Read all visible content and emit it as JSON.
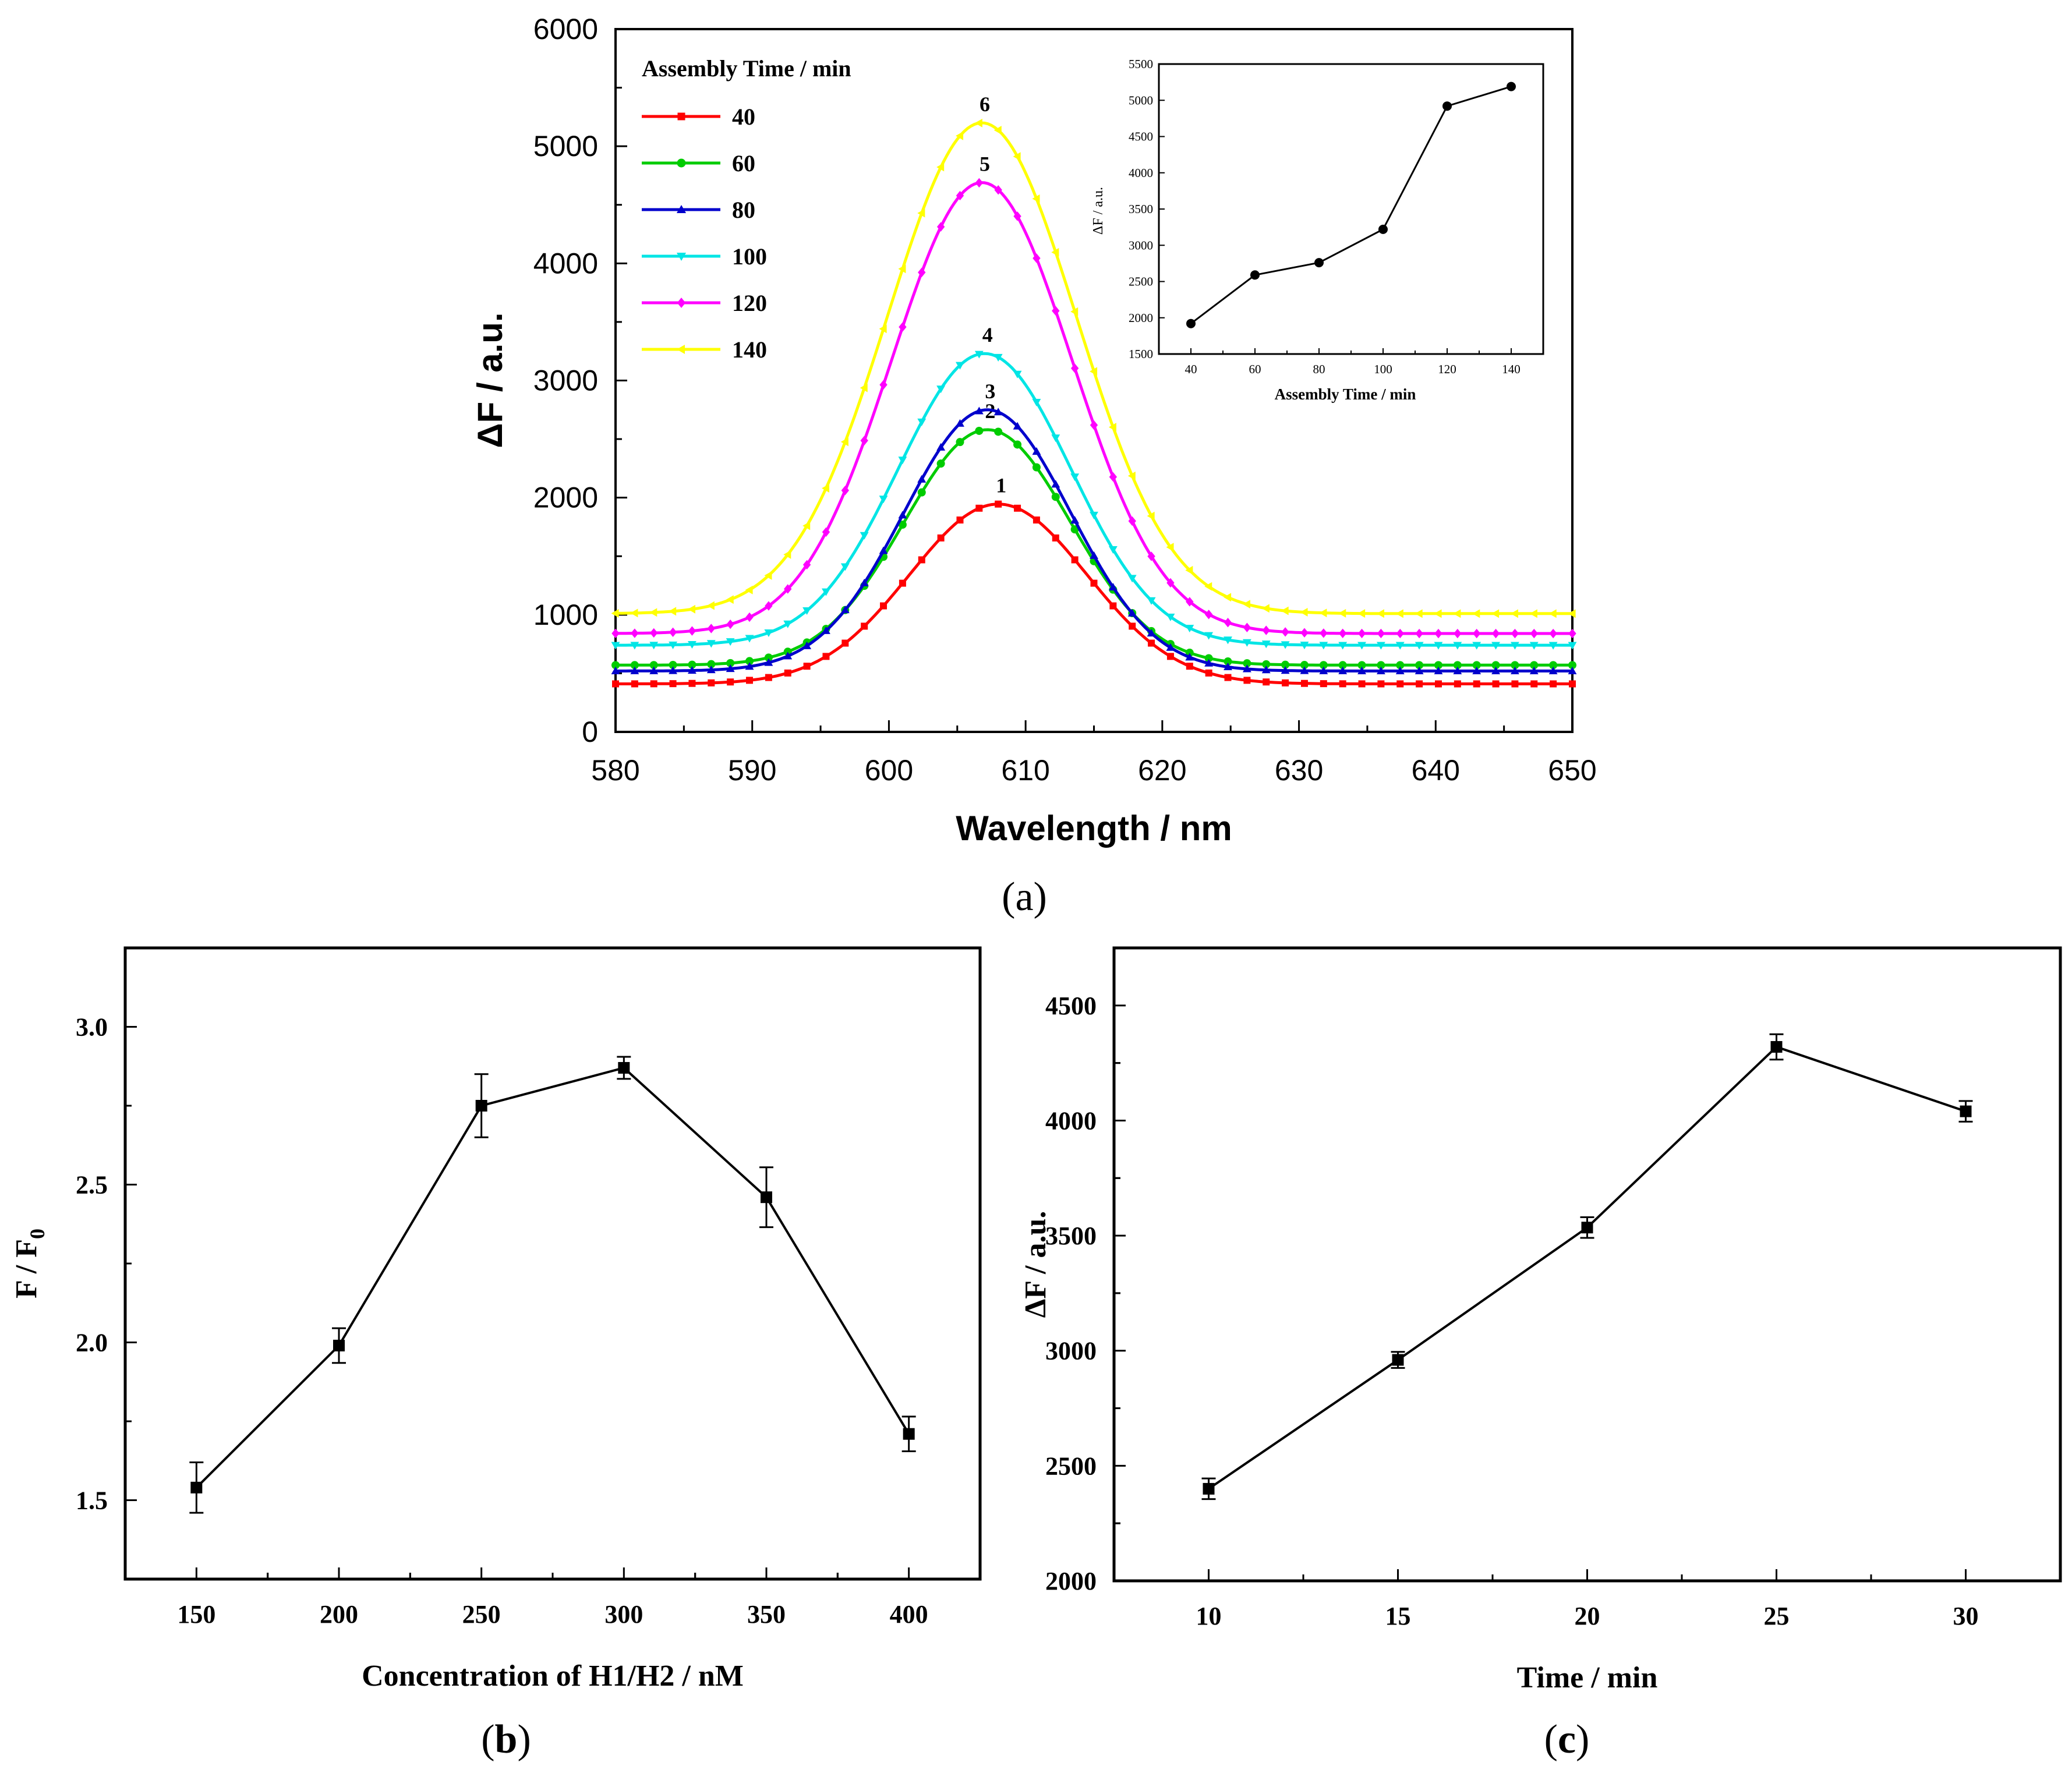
{
  "chart_data": [
    {
      "id": "a",
      "type": "line",
      "panel_label": "(a)",
      "panel_letter": "a",
      "xlabel": "Wavelength / nm",
      "ylabel": "ΔF / a.u.",
      "xlim": [
        580,
        650
      ],
      "ylim": [
        0,
        6000
      ],
      "xticks": [
        580,
        590,
        600,
        610,
        620,
        630,
        640,
        650
      ],
      "yticks": [
        0,
        1000,
        2000,
        3000,
        4000,
        5000,
        6000
      ],
      "legend_title": "Assembly Time / min",
      "legend_position": "top-left",
      "x_start": 580,
      "x_step": 1.4,
      "x_count": 51,
      "series": [
        {
          "name": "40",
          "curve_label": "1",
          "color": "#ff0000",
          "marker": "square",
          "baseline": 410,
          "peak": 1945,
          "center": 608.0,
          "sigma": 6.5
        },
        {
          "name": "60",
          "curve_label": "2",
          "color": "#00cc00",
          "marker": "circle",
          "baseline": 570,
          "peak": 2580,
          "center": 607.2,
          "sigma": 6.1
        },
        {
          "name": "80",
          "curve_label": "3",
          "color": "#0000cc",
          "marker": "triangle-up",
          "baseline": 520,
          "peak": 2750,
          "center": 607.2,
          "sigma": 6.1
        },
        {
          "name": "100",
          "curve_label": "4",
          "color": "#00e5e5",
          "marker": "triangle-down",
          "baseline": 740,
          "peak": 3230,
          "center": 607.0,
          "sigma": 6.3
        },
        {
          "name": "120",
          "curve_label": "5",
          "color": "#ff00ff",
          "marker": "diamond",
          "baseline": 840,
          "peak": 4690,
          "center": 606.8,
          "sigma": 6.6
        },
        {
          "name": "140",
          "curve_label": "6",
          "color": "#ffff00",
          "marker": "left-triangle",
          "baseline": 1010,
          "peak": 5200,
          "center": 606.8,
          "sigma": 6.9
        }
      ],
      "inset": {
        "type": "line",
        "xlabel": "Assembly Time / min",
        "ylabel": "ΔF / a.u.",
        "xlim": [
          30,
          150
        ],
        "ylim": [
          1500,
          5500
        ],
        "xticks": [
          40,
          60,
          80,
          100,
          120,
          140
        ],
        "yticks": [
          1500,
          2000,
          2500,
          3000,
          3500,
          4000,
          4500,
          5000,
          5500
        ],
        "x": [
          40,
          60,
          80,
          100,
          120,
          140
        ],
        "y": [
          1920,
          2590,
          2760,
          3220,
          4920,
          5190
        ]
      }
    },
    {
      "id": "b",
      "type": "line",
      "panel_label": "(b)",
      "panel_letter": "b",
      "xlabel": "Concentration of H1/H2 / nM",
      "ylabel": "F / F",
      "ylabel_sub": "0",
      "xlim": [
        125,
        425
      ],
      "ylim": [
        1.25,
        3.25
      ],
      "xticks": [
        150,
        200,
        250,
        300,
        350,
        400
      ],
      "yticks": [
        1.5,
        2.0,
        2.5,
        3.0
      ],
      "ytick_decimals": 1,
      "x": [
        150,
        200,
        250,
        300,
        350,
        400
      ],
      "y": [
        1.54,
        1.99,
        2.75,
        2.87,
        2.46,
        1.71
      ],
      "error": [
        0.08,
        0.055,
        0.1,
        0.035,
        0.095,
        0.055
      ]
    },
    {
      "id": "c",
      "type": "line",
      "panel_label": "(c)",
      "panel_letter": "c",
      "xlabel": "Time / min",
      "ylabel": "ΔF / a.u.",
      "xlim": [
        7.5,
        32.5
      ],
      "ylim": [
        2000,
        4750
      ],
      "xticks": [
        10,
        15,
        20,
        25,
        30
      ],
      "yticks": [
        2000,
        2500,
        3000,
        3500,
        4000,
        4500
      ],
      "ytick_decimals": 0,
      "x": [
        10,
        15,
        20,
        25,
        30
      ],
      "y": [
        2400,
        2960,
        3535,
        4320,
        4040
      ],
      "error": [
        45,
        35,
        45,
        55,
        45
      ]
    }
  ]
}
